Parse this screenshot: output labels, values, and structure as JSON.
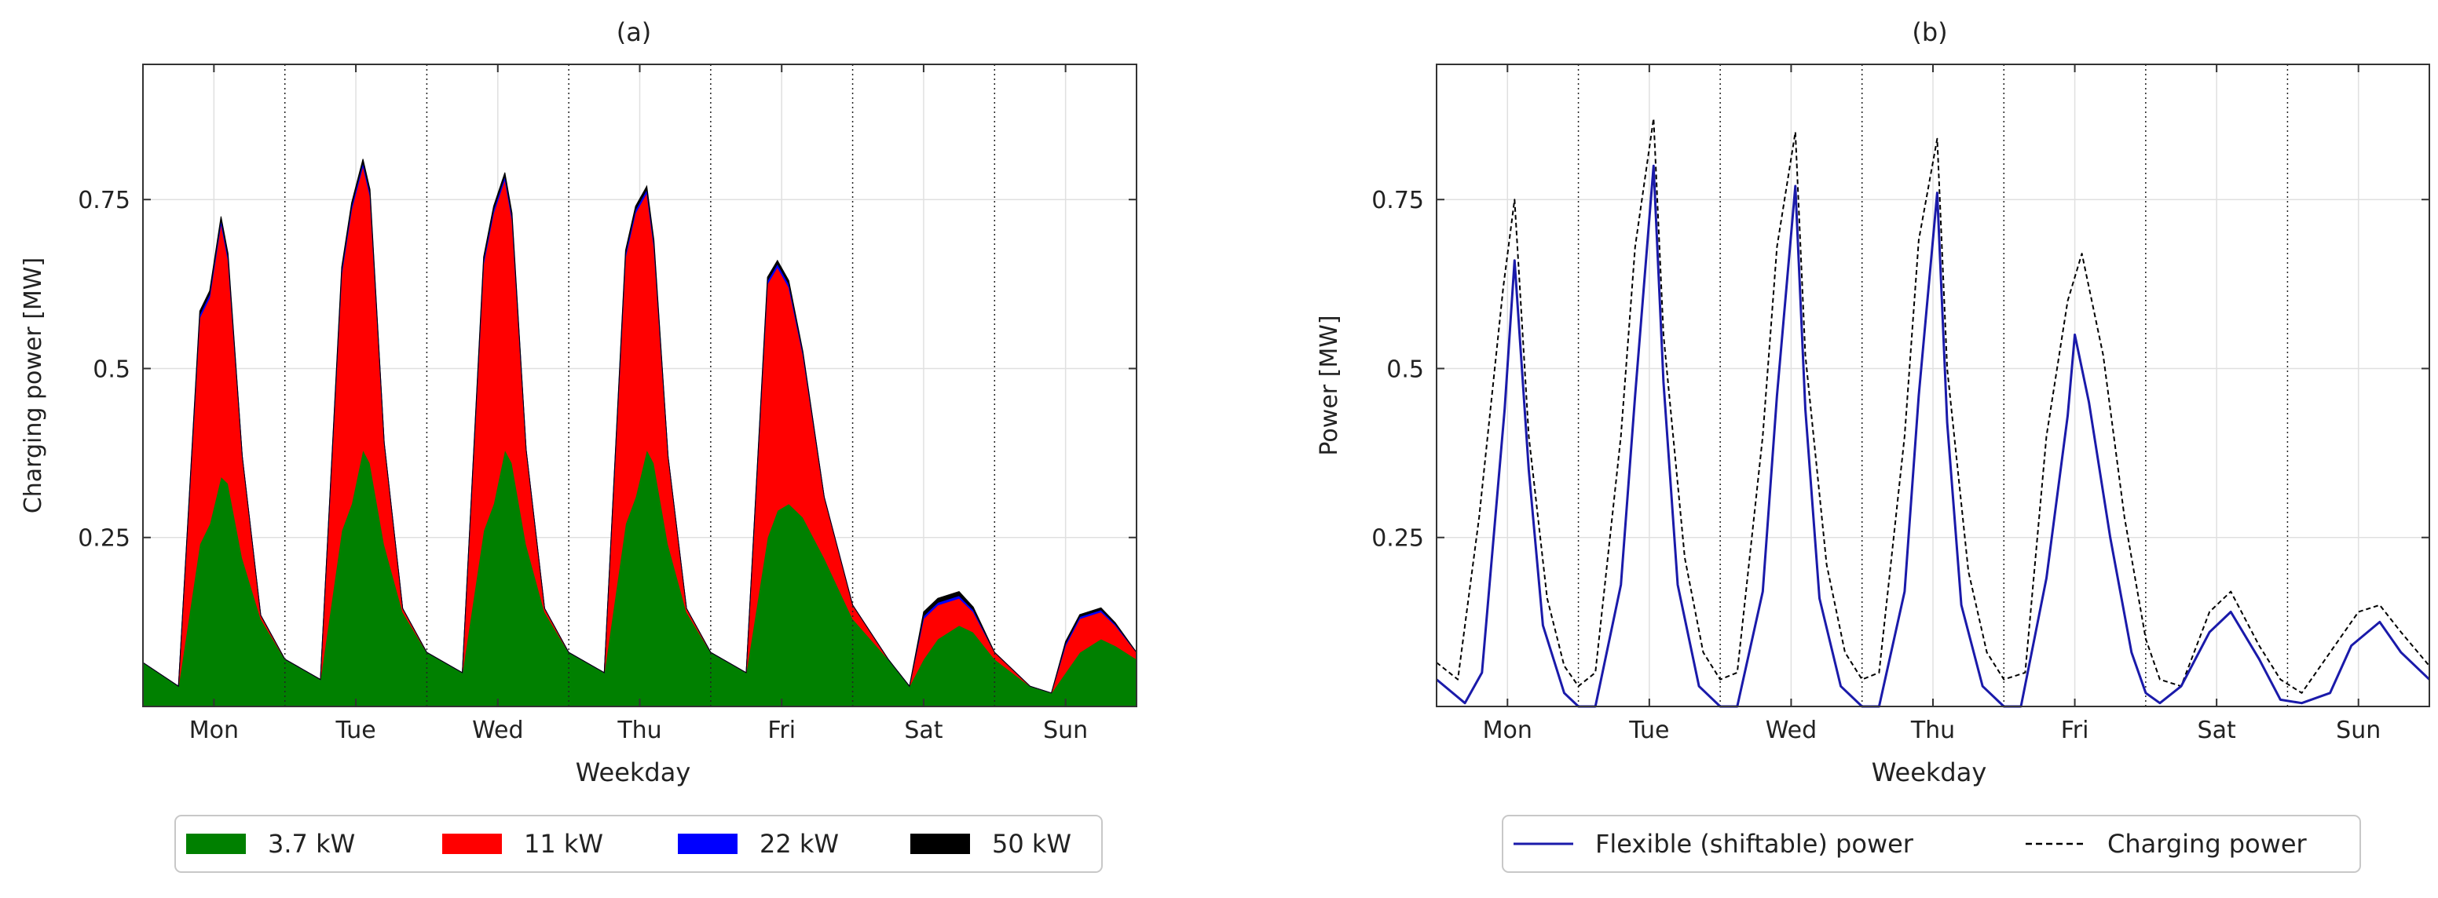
{
  "figure": {
    "panels": [
      {
        "title": "(a)",
        "xlabel": "Weekday",
        "ylabel": "Charging power [MW]",
        "legend": [
          "3.7 kW",
          "11 kW",
          "22 kW",
          "50 kW"
        ]
      },
      {
        "title": "(b)",
        "xlabel": "Weekday",
        "ylabel": "Power [MW]",
        "legend": [
          "Flexible (shiftable) power",
          "Charging power"
        ]
      }
    ]
  },
  "chart_data": [
    {
      "type": "area",
      "stacked": true,
      "title": "(a)",
      "xlabel": "Weekday",
      "ylabel": "Charging power [MW]",
      "xlim": [
        0,
        7
      ],
      "ylim": [
        0,
        0.95
      ],
      "yticks": [
        0.25,
        0.5,
        0.75
      ],
      "ytick_labels": [
        "0.25",
        "0.5",
        "0.75"
      ],
      "categories": [
        "Mon",
        "Tue",
        "Wed",
        "Thu",
        "Fri",
        "Sat",
        "Sun"
      ],
      "grid": true,
      "legend_position": "bottom",
      "x": [
        0,
        0.25,
        0.4,
        0.47,
        0.55,
        0.6,
        0.7,
        0.83,
        1.0,
        1.25,
        1.4,
        1.47,
        1.55,
        1.6,
        1.7,
        1.83,
        2.0,
        2.25,
        2.4,
        2.47,
        2.55,
        2.6,
        2.7,
        2.83,
        3.0,
        3.25,
        3.4,
        3.47,
        3.55,
        3.6,
        3.7,
        3.83,
        4.0,
        4.25,
        4.4,
        4.47,
        4.55,
        4.65,
        4.8,
        5.0,
        5.25,
        5.4,
        5.5,
        5.6,
        5.75,
        5.85,
        6.0,
        6.25,
        6.4,
        6.5,
        6.6,
        6.75,
        6.85,
        7.0
      ],
      "series": [
        {
          "name": "3.7 kW",
          "color": "#008000",
          "values": [
            0.065,
            0.03,
            0.24,
            0.27,
            0.34,
            0.33,
            0.22,
            0.13,
            0.07,
            0.04,
            0.26,
            0.3,
            0.38,
            0.36,
            0.24,
            0.14,
            0.08,
            0.05,
            0.26,
            0.3,
            0.38,
            0.36,
            0.24,
            0.14,
            0.08,
            0.05,
            0.27,
            0.31,
            0.38,
            0.36,
            0.24,
            0.14,
            0.08,
            0.05,
            0.25,
            0.29,
            0.3,
            0.28,
            0.22,
            0.13,
            0.07,
            0.03,
            0.07,
            0.1,
            0.12,
            0.11,
            0.07,
            0.03,
            0.02,
            0.05,
            0.08,
            0.1,
            0.09,
            0.07
          ]
        },
        {
          "name": "11 kW",
          "color": "#ff0000",
          "values": [
            0.0,
            0.0,
            0.335,
            0.335,
            0.375,
            0.33,
            0.15,
            0.005,
            0.0,
            0.0,
            0.38,
            0.435,
            0.42,
            0.395,
            0.15,
            0.005,
            0.0,
            0.0,
            0.395,
            0.43,
            0.4,
            0.36,
            0.14,
            0.005,
            0.0,
            0.0,
            0.395,
            0.42,
            0.38,
            0.32,
            0.13,
            0.005,
            0.0,
            0.0,
            0.375,
            0.36,
            0.32,
            0.24,
            0.09,
            0.02,
            0.0,
            0.0,
            0.06,
            0.05,
            0.04,
            0.03,
            0.01,
            0.0,
            0.0,
            0.04,
            0.05,
            0.04,
            0.03,
            0.01
          ]
        },
        {
          "name": "22 kW",
          "color": "#0000ff",
          "values": [
            0.0,
            0.0,
            0.005,
            0.005,
            0.005,
            0.005,
            0.0,
            0.0,
            0.0,
            0.0,
            0.005,
            0.005,
            0.005,
            0.005,
            0.0,
            0.0,
            0.0,
            0.0,
            0.005,
            0.005,
            0.005,
            0.005,
            0.0,
            0.0,
            0.0,
            0.0,
            0.005,
            0.005,
            0.005,
            0.005,
            0.0,
            0.0,
            0.0,
            0.0,
            0.005,
            0.005,
            0.005,
            0.003,
            0.0,
            0.0,
            0.0,
            0.0,
            0.004,
            0.004,
            0.004,
            0.003,
            0.0,
            0.0,
            0.0,
            0.003,
            0.003,
            0.003,
            0.002,
            0.0
          ]
        },
        {
          "name": "50 kW",
          "color": "#000000",
          "values": [
            0.0,
            0.0,
            0.005,
            0.005,
            0.005,
            0.005,
            0.0,
            0.0,
            0.0,
            0.0,
            0.005,
            0.005,
            0.005,
            0.005,
            0.0,
            0.0,
            0.0,
            0.0,
            0.005,
            0.005,
            0.005,
            0.005,
            0.0,
            0.0,
            0.0,
            0.0,
            0.005,
            0.005,
            0.005,
            0.005,
            0.0,
            0.0,
            0.0,
            0.0,
            0.005,
            0.005,
            0.005,
            0.002,
            0.0,
            0.0,
            0.0,
            0.0,
            0.006,
            0.006,
            0.006,
            0.004,
            0.0,
            0.0,
            0.0,
            0.003,
            0.003,
            0.003,
            0.002,
            0.0
          ]
        }
      ]
    },
    {
      "type": "line",
      "title": "(b)",
      "xlabel": "Weekday",
      "ylabel": "Power [MW]",
      "xlim": [
        0,
        7
      ],
      "ylim": [
        0,
        0.95
      ],
      "yticks": [
        0.25,
        0.5,
        0.75
      ],
      "ytick_labels": [
        "0.25",
        "0.5",
        "0.75"
      ],
      "categories": [
        "Mon",
        "Tue",
        "Wed",
        "Thu",
        "Fri",
        "Sat",
        "Sun"
      ],
      "grid": true,
      "legend_position": "bottom",
      "series": [
        {
          "name": "Flexible (shiftable) power",
          "color": "#1a1aaa",
          "style": "solid",
          "x": [
            0,
            0.2,
            0.32,
            0.48,
            0.55,
            0.65,
            0.75,
            0.9,
            1.0,
            1.12,
            1.3,
            1.4,
            1.53,
            1.6,
            1.7,
            1.85,
            2.0,
            2.12,
            2.3,
            2.4,
            2.53,
            2.6,
            2.7,
            2.85,
            3.0,
            3.12,
            3.3,
            3.4,
            3.53,
            3.6,
            3.7,
            3.85,
            4.0,
            4.12,
            4.3,
            4.45,
            4.5,
            4.6,
            4.75,
            4.9,
            5.0,
            5.1,
            5.25,
            5.45,
            5.6,
            5.8,
            5.95,
            6.1,
            6.3,
            6.45,
            6.65,
            6.8,
            7.0
          ],
          "values": [
            0.04,
            0.005,
            0.05,
            0.44,
            0.66,
            0.35,
            0.12,
            0.02,
            0.0,
            0.0,
            0.18,
            0.46,
            0.8,
            0.48,
            0.18,
            0.03,
            0.0,
            0.0,
            0.17,
            0.46,
            0.77,
            0.44,
            0.16,
            0.03,
            0.0,
            0.0,
            0.17,
            0.46,
            0.76,
            0.42,
            0.15,
            0.03,
            0.0,
            0.0,
            0.19,
            0.43,
            0.55,
            0.45,
            0.25,
            0.08,
            0.02,
            0.005,
            0.03,
            0.11,
            0.14,
            0.07,
            0.01,
            0.005,
            0.02,
            0.09,
            0.125,
            0.08,
            0.04
          ]
        },
        {
          "name": "Charging power",
          "color": "#000000",
          "style": "dashed",
          "x": [
            0,
            0.15,
            0.3,
            0.47,
            0.55,
            0.65,
            0.78,
            0.9,
            1.0,
            1.12,
            1.3,
            1.4,
            1.53,
            1.6,
            1.75,
            1.88,
            2.0,
            2.12,
            2.3,
            2.4,
            2.53,
            2.6,
            2.75,
            2.88,
            3.0,
            3.12,
            3.3,
            3.4,
            3.53,
            3.6,
            3.75,
            3.88,
            4.0,
            4.15,
            4.3,
            4.45,
            4.55,
            4.7,
            4.85,
            5.0,
            5.1,
            5.25,
            5.45,
            5.6,
            5.8,
            5.95,
            6.1,
            6.3,
            6.5,
            6.65,
            6.8,
            7.0
          ],
          "values": [
            0.065,
            0.04,
            0.28,
            0.62,
            0.75,
            0.4,
            0.16,
            0.06,
            0.03,
            0.05,
            0.4,
            0.68,
            0.87,
            0.55,
            0.22,
            0.08,
            0.04,
            0.05,
            0.4,
            0.68,
            0.85,
            0.52,
            0.21,
            0.08,
            0.04,
            0.05,
            0.4,
            0.69,
            0.84,
            0.5,
            0.2,
            0.08,
            0.04,
            0.05,
            0.4,
            0.6,
            0.67,
            0.52,
            0.28,
            0.1,
            0.04,
            0.03,
            0.14,
            0.17,
            0.09,
            0.04,
            0.02,
            0.08,
            0.14,
            0.15,
            0.11,
            0.06
          ]
        }
      ]
    }
  ]
}
